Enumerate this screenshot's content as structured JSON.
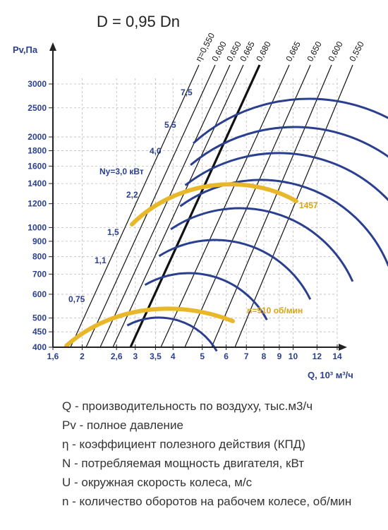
{
  "title": "D = 0,95 Dn",
  "chart_data": {
    "type": "line",
    "xlabel": "Q, 10³ м³/ч",
    "ylabel": "Pv,Па",
    "x_scale": "log",
    "y_scale": "log",
    "xlim": [
      1.6,
      14
    ],
    "ylim": [
      400,
      3000
    ],
    "x_ticks": [
      "1,6",
      "2",
      "2,6",
      "3",
      "3,5",
      "4",
      "5",
      "6",
      "7",
      "8",
      "9",
      "10",
      "12",
      "14"
    ],
    "y_ticks": [
      "400",
      "450",
      "500",
      "600",
      "700",
      "800",
      "900",
      "1000",
      "1200",
      "1400",
      "1600",
      "1800",
      "2000",
      "2500",
      "3000"
    ],
    "efficiency_lines": [
      "η=0,550",
      "0,600",
      "0,650",
      "0,665",
      "0,680",
      "0,665",
      "0,650",
      "0,600",
      "0,550"
    ],
    "power_curves": [
      {
        "label": "0,75",
        "color": "#2a3f8f"
      },
      {
        "label": "1,1",
        "color": "#2a3f8f"
      },
      {
        "label": "1,5",
        "color": "#2a3f8f"
      },
      {
        "label": "2,2",
        "color": "#2a3f8f"
      },
      {
        "label": "Nу=3,0 кВт",
        "color": "#2a3f8f"
      },
      {
        "label": "4,0",
        "color": "#2a3f8f"
      },
      {
        "label": "5,5",
        "color": "#2a3f8f"
      },
      {
        "label": "7,5",
        "color": "#2a3f8f"
      }
    ],
    "speed_curves": [
      {
        "label": "n=910 об/мин",
        "color": "#e8b82a"
      },
      {
        "label": "1457",
        "color": "#e8b82a"
      }
    ],
    "grid": true
  },
  "legend": [
    "Q - производительность по воздуху, тыс.м3/ч",
    "Pv - полное давление",
    "η - коэффициент полезного действия (КПД)",
    "N - потребляемая мощность двигателя, кВт",
    "U - окружная скорость колеса, м/с",
    "n - количество оборотов на рабочем колесе, об/мин"
  ],
  "colors": {
    "axis": "#222222",
    "grid": "#bbbbbb",
    "power": "#2a3f8f",
    "speed": "#e8b82a",
    "label_blue": "#2a3f8f",
    "label_gold": "#d9a21a"
  }
}
